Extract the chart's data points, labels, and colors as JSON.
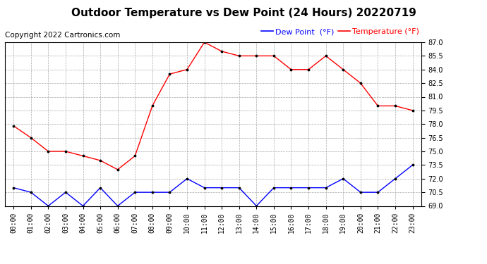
{
  "title": "Outdoor Temperature vs Dew Point (24 Hours) 20220719",
  "copyright": "Copyright 2022 Cartronics.com",
  "legend_dew": "Dew Point  (°F)",
  "legend_temp": "Temperature (°F)",
  "hours": [
    "00:00",
    "01:00",
    "02:00",
    "03:00",
    "04:00",
    "05:00",
    "06:00",
    "07:00",
    "08:00",
    "09:00",
    "10:00",
    "11:00",
    "12:00",
    "13:00",
    "14:00",
    "15:00",
    "16:00",
    "17:00",
    "18:00",
    "19:00",
    "20:00",
    "21:00",
    "22:00",
    "23:00"
  ],
  "temperature": [
    77.8,
    76.5,
    75.0,
    75.0,
    74.5,
    74.0,
    73.0,
    74.5,
    80.0,
    83.5,
    84.0,
    87.0,
    86.0,
    85.5,
    85.5,
    85.5,
    84.0,
    84.0,
    85.5,
    84.0,
    82.5,
    80.0,
    80.0,
    79.5
  ],
  "dew_point": [
    71.0,
    70.5,
    69.0,
    70.5,
    69.0,
    71.0,
    69.0,
    70.5,
    70.5,
    70.5,
    72.0,
    71.0,
    71.0,
    71.0,
    69.0,
    71.0,
    71.0,
    71.0,
    71.0,
    72.0,
    70.5,
    70.5,
    72.0,
    73.5
  ],
  "ylim": [
    69.0,
    87.0
  ],
  "yticks": [
    69.0,
    70.5,
    72.0,
    73.5,
    75.0,
    76.5,
    78.0,
    79.5,
    81.0,
    82.5,
    84.0,
    85.5,
    87.0
  ],
  "temp_color": "red",
  "dew_color": "blue",
  "grid_color": "#aaaaaa",
  "bg_color": "white",
  "title_fontsize": 11,
  "legend_fontsize": 8,
  "tick_fontsize": 7,
  "copyright_fontsize": 7.5
}
